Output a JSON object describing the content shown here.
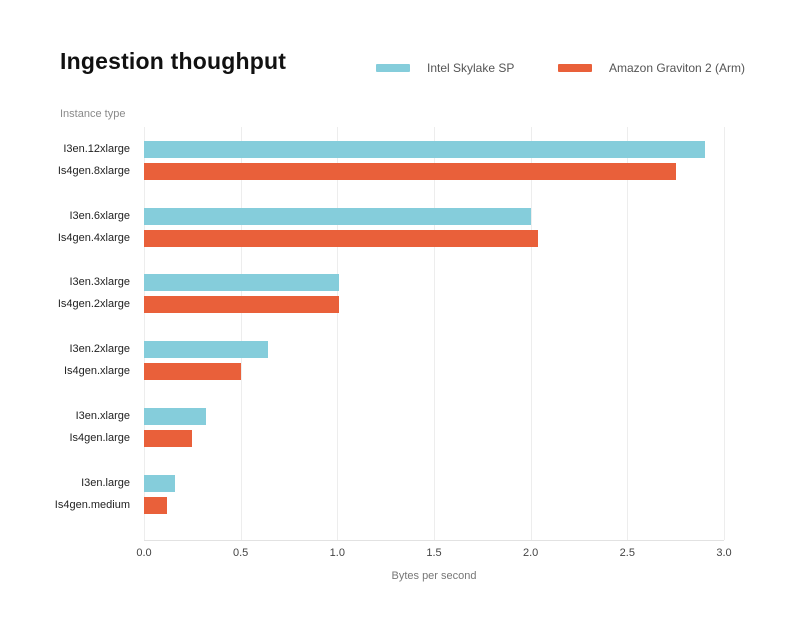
{
  "header": {
    "title": "Ingestion thoughput"
  },
  "legend": [
    {
      "label": "Intel Skylake SP",
      "color": "#85CDDB"
    },
    {
      "label": "Amazon Graviton 2 (Arm)",
      "color": "#E9603A"
    }
  ],
  "chart_data": {
    "type": "bar",
    "orientation": "horizontal",
    "title": "Ingestion thoughput",
    "xlabel": "Bytes per second",
    "ylabel": "Instance type",
    "xlim": [
      0,
      3.0
    ],
    "xticks": [
      0.0,
      0.5,
      1.0,
      1.5,
      2.0,
      2.5,
      3.0
    ],
    "grid": true,
    "legend_position": "top-right",
    "bar_colors": {
      "intel": "#85CDDB",
      "graviton": "#E9603A"
    },
    "series": [
      {
        "name": "Intel Skylake SP",
        "color": "#85CDDB",
        "categories": [
          "I3en.12xlarge",
          "I3en.6xlarge",
          "I3en.3xlarge",
          "I3en.2xlarge",
          "I3en.xlarge",
          "I3en.large"
        ],
        "values": [
          2.9,
          2.0,
          1.01,
          0.64,
          0.32,
          0.16
        ]
      },
      {
        "name": "Amazon Graviton 2 (Arm)",
        "color": "#E9603A",
        "categories": [
          "Is4gen.8xlarge",
          "Is4gen.4xlarge",
          "Is4gen.2xlarge",
          "Is4gen.xlarge",
          "Is4gen.large",
          "Is4gen.medium"
        ],
        "values": [
          2.75,
          2.04,
          1.01,
          0.5,
          0.25,
          0.12
        ]
      }
    ]
  }
}
